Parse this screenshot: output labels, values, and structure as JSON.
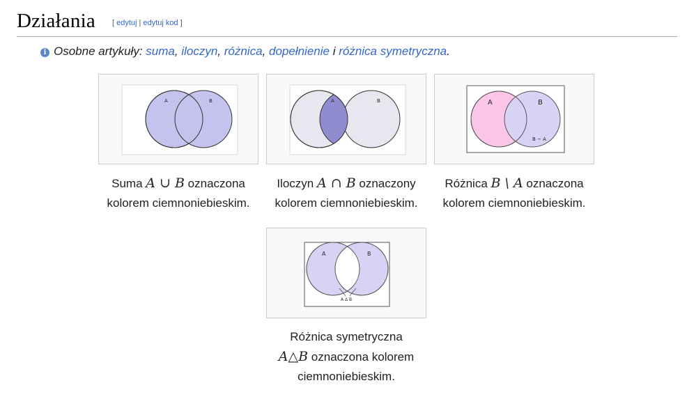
{
  "section": {
    "title": "Działania",
    "edit_open": "[ ",
    "edit_label": "edytuj",
    "edit_sep": " | ",
    "edit_code_label": "edytuj kod",
    "edit_close": " ]"
  },
  "hatnote": {
    "prefix": "Osobne artykuły: ",
    "links": [
      "suma",
      "iloczyn",
      "różnica",
      "dopełnienie",
      "różnica symetryczna"
    ],
    "sep1": ", ",
    "sep2": ", ",
    "sep3": ", ",
    "conj": " i ",
    "end": "."
  },
  "colors": {
    "link": "#3366cc",
    "blue_fill": "#c3c3ee",
    "pale_fill": "#e8e6ef",
    "pink_fill": "#fbc6e8",
    "lavender_fill": "#d8d3f5",
    "intersection_fill": "#8f8dd0"
  },
  "gallery": [
    {
      "labels": [
        "A",
        "B"
      ],
      "caption_word": "Suma ",
      "math": "A ∪ B",
      "caption_rest": " oznaczona",
      "caption_line2": "kolorem ciemnoniebieskim."
    },
    {
      "labels": [
        "A",
        "B"
      ],
      "caption_word": "Iloczyn ",
      "math": "A ∩ B",
      "caption_rest": " oznaczony",
      "caption_line2": "kolorem ciemnoniebieskim."
    },
    {
      "labels": [
        "A",
        "B",
        "B − A"
      ],
      "caption_word": "Różnica ",
      "math": "B \\ A",
      "caption_rest": " oznaczona",
      "caption_line2": "kolorem ciemnoniebieskim."
    },
    {
      "labels": [
        "A",
        "B",
        "A Δ B"
      ],
      "caption_line1": "Różnica symetryczna",
      "math": "A△B",
      "caption_rest": " oznaczona kolorem",
      "caption_line3": "ciemnoniebieskim."
    }
  ]
}
